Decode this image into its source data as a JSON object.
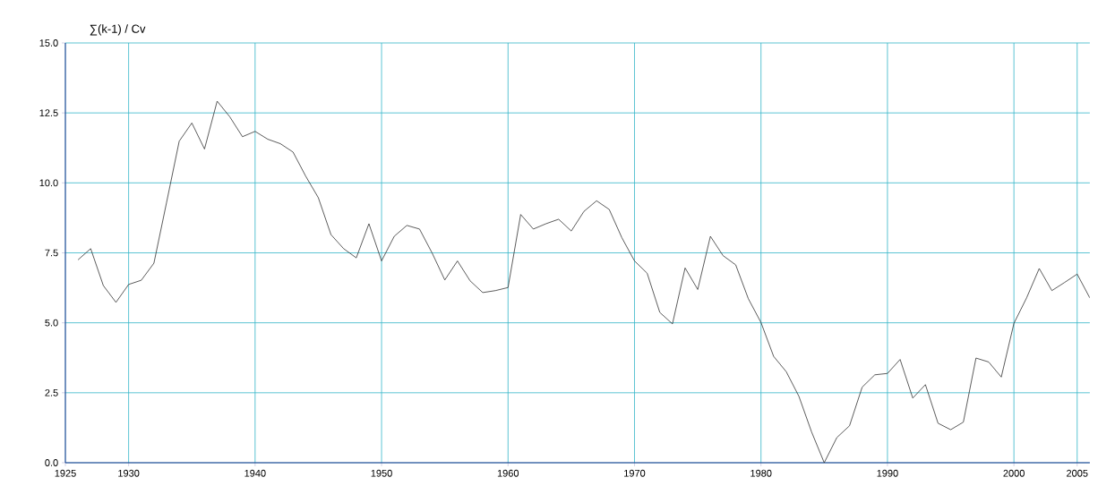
{
  "chart_data": {
    "type": "line",
    "ylabel": "∑(k-1) / Cv",
    "x": [
      1926,
      1927,
      1928,
      1929,
      1930,
      1931,
      1932,
      1933,
      1934,
      1935,
      1936,
      1937,
      1938,
      1939,
      1940,
      1941,
      1942,
      1943,
      1944,
      1945,
      1946,
      1947,
      1948,
      1949,
      1950,
      1951,
      1952,
      1953,
      1954,
      1955,
      1956,
      1957,
      1958,
      1959,
      1960,
      1961,
      1962,
      1963,
      1964,
      1965,
      1966,
      1967,
      1968,
      1969,
      1970,
      1971,
      1972,
      1973,
      1974,
      1975,
      1976,
      1977,
      1978,
      1979,
      1980,
      1981,
      1982,
      1983,
      1984,
      1985,
      1986,
      1987,
      1988,
      1989,
      1990,
      1991,
      1992,
      1993,
      1994,
      1995,
      1996,
      1997,
      1998,
      1999,
      2000,
      2001,
      2002,
      2003,
      2004,
      2005,
      2006
    ],
    "series": [
      {
        "color": "#333333",
        "values": [
          7.25,
          7.65,
          6.33,
          5.73,
          6.37,
          6.52,
          7.13,
          9.3,
          11.49,
          12.14,
          11.21,
          12.92,
          12.36,
          11.65,
          11.84,
          11.56,
          11.4,
          11.1,
          10.24,
          9.47,
          8.15,
          7.65,
          7.32,
          8.54,
          7.21,
          8.09,
          8.48,
          8.35,
          7.49,
          6.53,
          7.21,
          6.5,
          6.08,
          6.15,
          6.26,
          8.87,
          8.35,
          8.54,
          8.7,
          8.28,
          8.98,
          9.36,
          9.05,
          8.04,
          7.21,
          6.77,
          5.37,
          4.96,
          6.96,
          6.19,
          8.09,
          7.4,
          7.07,
          5.86,
          5.01,
          3.8,
          3.25,
          2.37,
          1.1,
          0.0,
          0.9,
          1.32,
          2.7,
          3.14,
          3.19,
          3.69,
          2.31,
          2.79,
          1.41,
          1.18,
          1.45,
          3.74,
          3.6,
          3.06,
          4.98,
          5.89,
          6.94,
          6.15,
          6.44,
          6.74,
          5.89
        ]
      }
    ],
    "xlim": [
      1925,
      2006
    ],
    "ylim": [
      0,
      15
    ],
    "xticks": [
      1925,
      1930,
      1940,
      1950,
      1960,
      1970,
      1980,
      1990,
      2000,
      2005
    ],
    "yticks": [
      {
        "value": 0,
        "label": "0.0"
      },
      {
        "value": 2.5,
        "label": "2.5"
      },
      {
        "value": 5,
        "label": "5.0"
      },
      {
        "value": 7.5,
        "label": "7.5"
      },
      {
        "value": 10,
        "label": "10.0"
      },
      {
        "value": 12.5,
        "label": "12.5"
      },
      {
        "value": 15,
        "label": "15.0"
      }
    ],
    "grid": true,
    "marker": "none",
    "line_style": "solid"
  }
}
